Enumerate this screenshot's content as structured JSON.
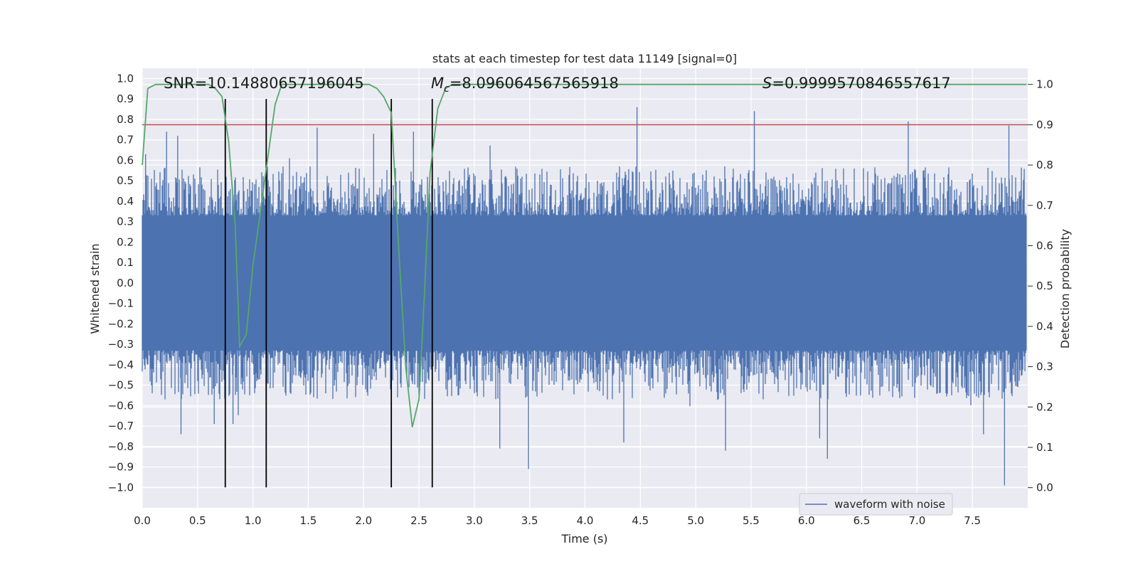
{
  "chart_data": {
    "type": "line",
    "title": "stats at each timestep for test data 11149 [signal=0]",
    "xlabel": "Time (s)",
    "ylabel": "Whitened strain",
    "y2label": "Detection probability",
    "xlim": [
      0.0,
      8.0
    ],
    "ylim": [
      -1.1,
      1.05
    ],
    "y2lim": [
      -0.05,
      1.04
    ],
    "grid": true,
    "x_ticks": [
      "0.0",
      "0.5",
      "1.0",
      "1.5",
      "2.0",
      "2.5",
      "3.0",
      "3.5",
      "4.0",
      "4.5",
      "5.0",
      "5.5",
      "6.0",
      "6.5",
      "7.0",
      "7.5"
    ],
    "x_tick_values": [
      0.0,
      0.5,
      1.0,
      1.5,
      2.0,
      2.5,
      3.0,
      3.5,
      4.0,
      4.5,
      5.0,
      5.5,
      6.0,
      6.5,
      7.0,
      7.5
    ],
    "y_ticks": [
      "1.0",
      "0.9",
      "0.8",
      "0.7",
      "0.6",
      "0.5",
      "0.4",
      "0.3",
      "0.2",
      "0.1",
      "0.0",
      "−0.1",
      "−0.2",
      "−0.3",
      "−0.4",
      "−0.5",
      "−0.6",
      "−0.7",
      "−0.8",
      "−0.9",
      "−1.0"
    ],
    "y_tick_values": [
      1.0,
      0.9,
      0.8,
      0.7,
      0.6,
      0.5,
      0.4,
      0.3,
      0.2,
      0.1,
      0.0,
      -0.1,
      -0.2,
      -0.3,
      -0.4,
      -0.5,
      -0.6,
      -0.7,
      -0.8,
      -0.9,
      -1.0
    ],
    "y2_ticks": [
      "1.0",
      "0.9",
      "0.8",
      "0.7",
      "0.6",
      "0.5",
      "0.4",
      "0.3",
      "0.2",
      "0.1",
      "0.0"
    ],
    "y2_tick_values": [
      1.0,
      0.9,
      0.8,
      0.7,
      0.6,
      0.5,
      0.4,
      0.3,
      0.2,
      0.1,
      0.0
    ],
    "annotations": {
      "snr": "SNR=10.14880657196045",
      "mc_symbol": "M",
      "mc_sub": "c",
      "mc_value": "=8.096064567565918",
      "s_symbol": "S",
      "s_value": "=0.9999570846557617"
    },
    "threshold": {
      "value": 0.9,
      "axis": "y2",
      "color": "#c44e52"
    },
    "vertical_lines": [
      0.75,
      1.12,
      2.25,
      2.62
    ],
    "legend": {
      "label": "waveform with noise",
      "placement": "lower-right"
    },
    "series": [
      {
        "name": "waveform with noise",
        "axis": "y",
        "color": "#4c72b0",
        "kind": "noise",
        "sample_rate": 2048,
        "duration": 7.99,
        "envelope": 0.33,
        "typical_peak": 0.45,
        "spikes": [
          {
            "x": 0.03,
            "y": 0.63
          },
          {
            "x": 0.22,
            "y": 0.74
          },
          {
            "x": 0.32,
            "y": 0.72
          },
          {
            "x": 0.35,
            "y": -0.74
          },
          {
            "x": 0.65,
            "y": -0.69
          },
          {
            "x": 0.82,
            "y": -0.69
          },
          {
            "x": 1.33,
            "y": 0.61
          },
          {
            "x": 1.58,
            "y": 0.76
          },
          {
            "x": 2.09,
            "y": 0.73
          },
          {
            "x": 2.45,
            "y": 0.74
          },
          {
            "x": 3.23,
            "y": -0.81
          },
          {
            "x": 3.49,
            "y": -0.91
          },
          {
            "x": 4.47,
            "y": 0.86
          },
          {
            "x": 4.35,
            "y": -0.78
          },
          {
            "x": 5.27,
            "y": -0.82
          },
          {
            "x": 5.53,
            "y": 0.84
          },
          {
            "x": 6.19,
            "y": -0.86
          },
          {
            "x": 6.92,
            "y": 0.79
          },
          {
            "x": 7.83,
            "y": 0.77
          },
          {
            "x": 7.79,
            "y": -0.99
          },
          {
            "x": 6.12,
            "y": -0.76
          },
          {
            "x": 7.6,
            "y": -0.74
          }
        ]
      },
      {
        "name": "detection probability",
        "axis": "y2",
        "color": "#55a868",
        "x": [
          0.0,
          0.05,
          0.12,
          0.2,
          0.3,
          0.4,
          0.5,
          0.6,
          0.66,
          0.72,
          0.78,
          0.84,
          0.88,
          0.94,
          1.0,
          1.1,
          1.2,
          1.26,
          1.35,
          1.5,
          1.7,
          1.9,
          2.05,
          2.12,
          2.18,
          2.25,
          2.32,
          2.38,
          2.44,
          2.5,
          2.55,
          2.6,
          2.67,
          2.74,
          2.8,
          3.0,
          3.5,
          4.0,
          5.0,
          6.0,
          7.0,
          7.99
        ],
        "y": [
          0.8,
          0.99,
          1.0,
          1.0,
          1.0,
          1.0,
          1.0,
          1.0,
          0.99,
          0.97,
          0.86,
          0.65,
          0.35,
          0.38,
          0.55,
          0.75,
          0.95,
          1.0,
          1.0,
          1.0,
          1.0,
          1.0,
          1.0,
          0.99,
          0.97,
          0.93,
          0.58,
          0.3,
          0.15,
          0.22,
          0.48,
          0.78,
          0.94,
          0.99,
          1.0,
          1.0,
          1.0,
          1.0,
          1.0,
          1.0,
          1.0,
          1.0
        ]
      }
    ]
  }
}
